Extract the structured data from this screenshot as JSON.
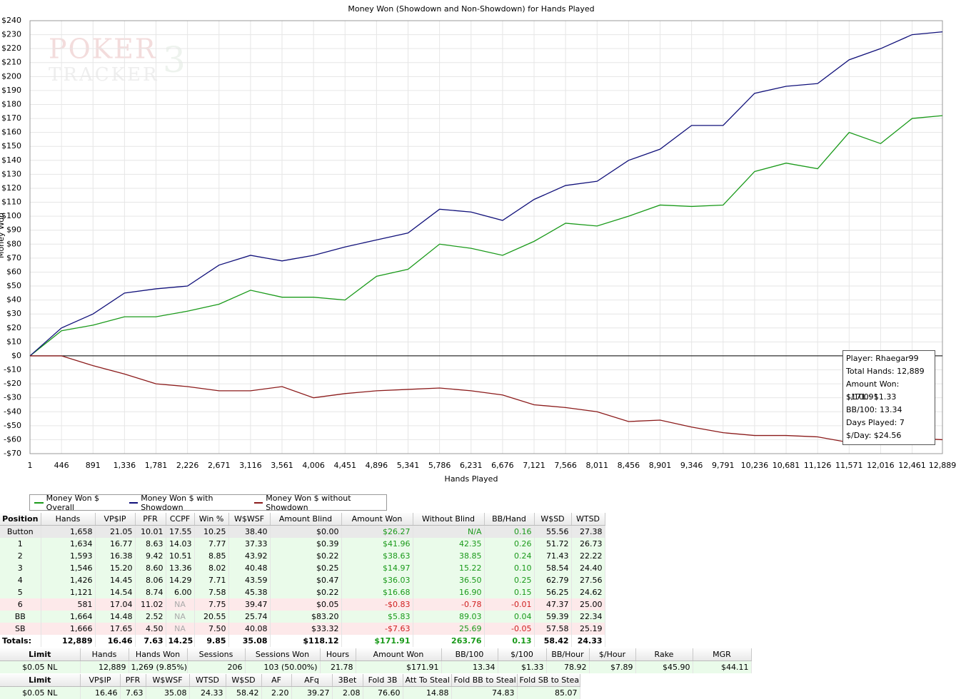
{
  "chart_data": {
    "type": "line",
    "title": "Money Won (Showdown and Non-Showdown) for Hands Played",
    "xlabel": "Hands Played",
    "ylabel": "Money Won",
    "watermark": [
      "POKER",
      "TRACKER",
      "3"
    ],
    "x": [
      1,
      446,
      891,
      1336,
      1781,
      2226,
      2671,
      3116,
      3561,
      4006,
      4451,
      4896,
      5341,
      5786,
      6231,
      6676,
      7121,
      7566,
      8011,
      8456,
      8901,
      9346,
      9791,
      10236,
      10681,
      11126,
      11571,
      12016,
      12461,
      12889
    ],
    "series": [
      {
        "name": "Money Won $ Overall",
        "color": "#1a9a1a",
        "values": [
          0,
          18,
          22,
          28,
          28,
          32,
          37,
          47,
          42,
          42,
          40,
          57,
          62,
          80,
          77,
          72,
          82,
          95,
          93,
          100,
          108,
          107,
          108,
          132,
          138,
          134,
          160,
          152,
          170,
          172
        ]
      },
      {
        "name": "Money Won $ with Showdown",
        "color": "#10107a",
        "values": [
          0,
          20,
          30,
          45,
          48,
          50,
          65,
          72,
          68,
          72,
          78,
          83,
          88,
          105,
          103,
          97,
          112,
          122,
          125,
          140,
          148,
          165,
          165,
          188,
          193,
          195,
          212,
          220,
          230,
          232
        ]
      },
      {
        "name": "Money Won $ without Showdown",
        "color": "#8b1a1a",
        "values": [
          0,
          0,
          -7,
          -13,
          -20,
          -22,
          -25,
          -25,
          -22,
          -30,
          -27,
          -25,
          -24,
          -23,
          -25,
          -28,
          -35,
          -37,
          -40,
          -47,
          -46,
          -51,
          -55,
          -57,
          -57,
          -58,
          -62,
          -61,
          -59,
          -60
        ]
      }
    ],
    "xlim": [
      1,
      12889
    ],
    "xticks": [
      1,
      {
        "value": 446,
        "label": "446"
      },
      {
        "value": 891,
        "label": "891"
      },
      {
        "value": 1336,
        "label": "1,336"
      },
      {
        "value": 1781,
        "label": "1,781"
      },
      {
        "value": 2226,
        "label": "2,226"
      },
      {
        "value": 2671,
        "label": "2,671"
      },
      {
        "value": 3116,
        "label": "3,116"
      },
      {
        "value": 3561,
        "label": "3,561"
      },
      {
        "value": 4006,
        "label": "4,006"
      },
      {
        "value": 4451,
        "label": "4,451"
      },
      {
        "value": 4896,
        "label": "4,896"
      },
      {
        "value": 5341,
        "label": "5,341"
      },
      {
        "value": 5786,
        "label": "5,786"
      },
      {
        "value": 6231,
        "label": "6,231"
      },
      {
        "value": 6676,
        "label": "6,676"
      },
      {
        "value": 7121,
        "label": "7,121"
      },
      {
        "value": 7566,
        "label": "7,566"
      },
      {
        "value": 8011,
        "label": "8,011"
      },
      {
        "value": 8456,
        "label": "8,456"
      },
      {
        "value": 8901,
        "label": "8,901"
      },
      {
        "value": 9346,
        "label": "9,346"
      },
      {
        "value": 9791,
        "label": "9,791"
      },
      {
        "value": 10236,
        "label": "10,236"
      },
      {
        "value": 10681,
        "label": "10,681"
      },
      {
        "value": 11126,
        "label": "11,126"
      },
      {
        "value": 11571,
        "label": "11,571"
      },
      {
        "value": 12016,
        "label": "12,016"
      },
      {
        "value": 12461,
        "label": "12,461"
      },
      {
        "value": 12889,
        "label": "12,889"
      }
    ],
    "ylim": [
      -70,
      240
    ],
    "yticks": [
      {
        "value": -70,
        "label": "-$70"
      },
      {
        "value": -60,
        "label": "-$60"
      },
      {
        "value": -50,
        "label": "-$50"
      },
      {
        "value": -40,
        "label": "-$40"
      },
      {
        "value": -30,
        "label": "-$30"
      },
      {
        "value": -20,
        "label": "-$20"
      },
      {
        "value": -10,
        "label": "-$10"
      },
      {
        "value": 0,
        "label": "$0"
      },
      {
        "value": 10,
        "label": "$10"
      },
      {
        "value": 20,
        "label": "$20"
      },
      {
        "value": 30,
        "label": "$30"
      },
      {
        "value": 40,
        "label": "$40"
      },
      {
        "value": 50,
        "label": "$50"
      },
      {
        "value": 60,
        "label": "$60"
      },
      {
        "value": 70,
        "label": "$70"
      },
      {
        "value": 80,
        "label": "$80"
      },
      {
        "value": 90,
        "label": "$90"
      },
      {
        "value": 100,
        "label": "$100"
      },
      {
        "value": 110,
        "label": "$110"
      },
      {
        "value": 120,
        "label": "$120"
      },
      {
        "value": 130,
        "label": "$130"
      },
      {
        "value": 140,
        "label": "$140"
      },
      {
        "value": 150,
        "label": "$150"
      },
      {
        "value": 160,
        "label": "$160"
      },
      {
        "value": 170,
        "label": "$170"
      },
      {
        "value": 180,
        "label": "$180"
      },
      {
        "value": 190,
        "label": "$190"
      },
      {
        "value": 200,
        "label": "$200"
      },
      {
        "value": 210,
        "label": "$210"
      },
      {
        "value": 220,
        "label": "$220"
      },
      {
        "value": 230,
        "label": "$230"
      },
      {
        "value": 240,
        "label": "$240"
      }
    ],
    "grid": true,
    "tooltip": [
      "Player: Rhaegar99",
      "Total Hands: 12,889",
      "Amount Won: $171.91",
      "$/100: $1.33",
      "BB/100: 13.34",
      "Days Played: 7",
      "$/Day: $24.56"
    ]
  },
  "position_table": {
    "columns": [
      "Position",
      "Hands",
      "VP$IP",
      "PFR",
      "CCPF",
      "Win %",
      "W$WSF",
      "Amount Blind",
      "Amount Won",
      "Without Blind",
      "BB/Hand",
      "W$SD",
      "WTSD"
    ],
    "rows": [
      [
        "Button",
        "1,658",
        "21.05",
        "10.01",
        "17.55",
        "10.25",
        "38.40",
        "$0.00",
        "$26.27",
        "N/A",
        "0.16",
        "55.56",
        "27.38"
      ],
      [
        "1",
        "1,634",
        "16.77",
        "8.63",
        "14.03",
        "7.77",
        "37.33",
        "$0.39",
        "$41.96",
        "42.35",
        "0.26",
        "51.72",
        "26.73"
      ],
      [
        "2",
        "1,593",
        "16.38",
        "9.42",
        "10.51",
        "8.85",
        "43.92",
        "$0.22",
        "$38.63",
        "38.85",
        "0.24",
        "71.43",
        "22.22"
      ],
      [
        "3",
        "1,546",
        "15.20",
        "8.60",
        "13.36",
        "8.02",
        "40.48",
        "$0.25",
        "$14.97",
        "15.22",
        "0.10",
        "58.54",
        "24.40"
      ],
      [
        "4",
        "1,426",
        "14.45",
        "8.06",
        "14.29",
        "7.71",
        "43.59",
        "$0.47",
        "$36.03",
        "36.50",
        "0.25",
        "62.79",
        "27.56"
      ],
      [
        "5",
        "1,121",
        "14.54",
        "8.74",
        "6.00",
        "7.58",
        "45.38",
        "$0.22",
        "$16.68",
        "16.90",
        "0.15",
        "56.25",
        "24.62"
      ],
      [
        "6",
        "581",
        "17.04",
        "11.02",
        "NA",
        "7.75",
        "39.47",
        "$0.05",
        "-$0.83",
        "-0.78",
        "-0.01",
        "47.37",
        "25.00"
      ],
      [
        "BB",
        "1,664",
        "14.48",
        "2.52",
        "NA",
        "20.55",
        "25.74",
        "$83.20",
        "$5.83",
        "89.03",
        "0.04",
        "59.39",
        "22.34"
      ],
      [
        "SB",
        "1,666",
        "17.65",
        "4.50",
        "NA",
        "7.50",
        "40.08",
        "$33.32",
        "-$7.63",
        "25.69",
        "-0.05",
        "57.58",
        "25.19"
      ]
    ],
    "totals": [
      "Totals:",
      "12,889",
      "16.46",
      "7.63",
      "14.25",
      "9.85",
      "35.08",
      "$118.12",
      "$171.91",
      "263.76",
      "0.13",
      "58.42",
      "24.33"
    ]
  },
  "limit_table": {
    "columns": [
      "Limit",
      "Hands",
      "Hands Won",
      "Sessions",
      "Sessions Won",
      "Hours",
      "Amount Won",
      "BB/100",
      "$/100",
      "BB/Hour",
      "$/Hour",
      "Rake",
      "MGR"
    ],
    "rows": [
      [
        "$0.05 NL",
        "12,889",
        "1,269 (9.85%)",
        "206",
        "103 (50.00%)",
        "21.78",
        "$171.91",
        "13.34",
        "$1.33",
        "78.92",
        "$7.89",
        "$45.90",
        "$44.11"
      ]
    ]
  },
  "stats_table": {
    "columns": [
      "Limit",
      "VP$IP",
      "PFR",
      "W$WSF",
      "WTSD",
      "W$SD",
      "AF",
      "AFq",
      "3Bet",
      "Fold 3B",
      "Att To Steal",
      "Fold BB to Steal",
      "Fold SB to Steal"
    ],
    "rows": [
      [
        "$0.05 NL",
        "16.46",
        "7.63",
        "35.08",
        "24.33",
        "58.42",
        "2.20",
        "39.27",
        "2.08",
        "76.60",
        "14.88",
        "74.83",
        "85.07"
      ]
    ]
  }
}
